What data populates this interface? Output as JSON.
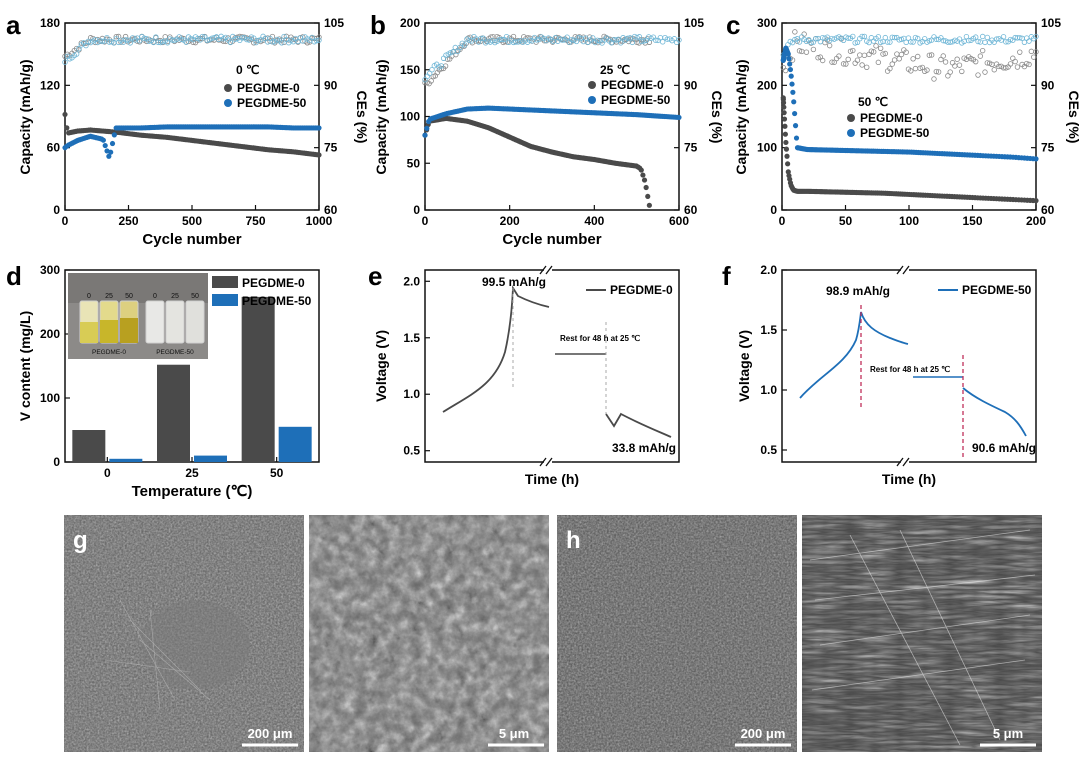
{
  "colors": {
    "p0": "#4a4a4a",
    "p50": "#1e6fb8",
    "ce": "#6fb6d6",
    "dash": "#c0305a"
  },
  "panels": {
    "a": "a",
    "b": "b",
    "c": "c",
    "d": "d",
    "e": "e",
    "f": "f",
    "g": "g",
    "h": "h"
  },
  "chart_data": [
    {
      "id": "a",
      "type": "scatter",
      "xlabel": "Cycle number",
      "ylabel": "Capacity (mAh/g)",
      "y2label": "CEs (%)",
      "xlim": [
        0,
        1000
      ],
      "ylim": [
        0,
        180
      ],
      "y2lim": [
        60,
        105
      ],
      "xticks": [
        "0",
        "250",
        "500",
        "750",
        "1000"
      ],
      "yticks": [
        "0",
        "60",
        "120",
        "180"
      ],
      "y2ticks": [
        "60",
        "75",
        "90",
        "105"
      ],
      "legend_title": "0 ℃",
      "legend_position": "right",
      "series": [
        {
          "name": "PEGDME-0",
          "x": [
            0,
            10,
            50,
            100,
            200,
            300,
            400,
            500,
            600,
            700,
            800,
            900,
            1000
          ],
          "values": [
            92,
            74,
            76,
            77,
            75,
            72,
            70,
            67,
            64,
            61,
            58,
            56,
            53
          ]
        },
        {
          "name": "PEGDME-50",
          "x": [
            0,
            10,
            50,
            100,
            150,
            175,
            200,
            300,
            400,
            500,
            600,
            700,
            800,
            900,
            1000
          ],
          "values": [
            60,
            62,
            67,
            71,
            68,
            50,
            79,
            79,
            80,
            80,
            80,
            80,
            80,
            79,
            79
          ]
        }
      ],
      "ce_series": [
        {
          "name": "CE PEGDME-0",
          "x": [
            0,
            100,
            200,
            300,
            400,
            500,
            600,
            700,
            800,
            900,
            1000
          ],
          "values": [
            97,
            101,
            101,
            101,
            101,
            101,
            101,
            101,
            101,
            101,
            101
          ]
        },
        {
          "name": "CE PEGDME-50",
          "x": [
            0,
            100,
            200,
            300,
            400,
            500,
            600,
            700,
            800,
            900,
            1000
          ],
          "values": [
            96,
            101,
            101,
            101,
            101,
            101,
            101,
            101,
            101,
            101,
            101
          ]
        }
      ]
    },
    {
      "id": "b",
      "type": "scatter",
      "xlabel": "Cycle number",
      "ylabel": "Capacity (mAh/g)",
      "y2label": "CEs (%)",
      "xlim": [
        0,
        600
      ],
      "ylim": [
        0,
        200
      ],
      "y2lim": [
        60,
        105
      ],
      "xticks": [
        "0",
        "200",
        "400",
        "600"
      ],
      "yticks": [
        "0",
        "50",
        "100",
        "150",
        "200"
      ],
      "y2ticks": [
        "60",
        "75",
        "90",
        "105"
      ],
      "legend_title": "25 ℃",
      "legend_position": "right",
      "series": [
        {
          "name": "PEGDME-0",
          "x": [
            0,
            10,
            50,
            100,
            150,
            200,
            250,
            300,
            350,
            400,
            450,
            500,
            510,
            520,
            530
          ],
          "values": [
            80,
            95,
            98,
            95,
            88,
            78,
            68,
            62,
            57,
            54,
            50,
            47,
            44,
            30,
            5
          ]
        },
        {
          "name": "PEGDME-50",
          "x": [
            0,
            10,
            50,
            100,
            150,
            200,
            300,
            400,
            500,
            600
          ],
          "values": [
            80,
            97,
            103,
            108,
            109,
            108,
            106,
            104,
            102,
            99
          ]
        }
      ],
      "ce_series": [
        {
          "name": "CE PEGDME-0",
          "x": [
            0,
            100,
            200,
            300,
            400,
            500,
            530
          ],
          "values": [
            90,
            101,
            101,
            101,
            101,
            101,
            101
          ]
        },
        {
          "name": "CE PEGDME-50",
          "x": [
            0,
            100,
            200,
            300,
            400,
            500,
            600
          ],
          "values": [
            92,
            101,
            101,
            101,
            101,
            101,
            101
          ]
        }
      ]
    },
    {
      "id": "c",
      "type": "scatter",
      "xlabel": "",
      "ylabel": "Capacity (mAh/g)",
      "y2label": "CEs (%)",
      "xlim": [
        0,
        200
      ],
      "ylim": [
        0,
        300
      ],
      "y2lim": [
        60,
        105
      ],
      "xticks": [
        "0",
        "50",
        "100",
        "150",
        "200"
      ],
      "yticks": [
        "0",
        "100",
        "200",
        "300"
      ],
      "y2ticks": [
        "60",
        "75",
        "90",
        "105"
      ],
      "legend_title": "50 ℃",
      "legend_position": "center",
      "series": [
        {
          "name": "PEGDME-0",
          "x": [
            1,
            3,
            5,
            7,
            9,
            12,
            20,
            40,
            60,
            80,
            100,
            120,
            140,
            160,
            180,
            200
          ],
          "values": [
            180,
            110,
            60,
            40,
            32,
            30,
            30,
            29,
            28,
            27,
            25,
            23,
            21,
            19,
            17,
            15
          ]
        },
        {
          "name": "PEGDME-50",
          "x": [
            1,
            3,
            5,
            7,
            9,
            12,
            20,
            40,
            60,
            80,
            100,
            120,
            140,
            160,
            180,
            200
          ],
          "values": [
            240,
            260,
            250,
            220,
            180,
            100,
            97,
            96,
            95,
            94,
            93,
            91,
            89,
            87,
            85,
            82
          ]
        }
      ],
      "ce_series": [
        {
          "name": "CE PEGDME-0",
          "x": [
            1,
            10,
            30,
            50,
            70,
            90,
            110,
            130,
            150,
            170,
            190,
            200
          ],
          "values": [
            95,
            100,
            99,
            98,
            97,
            96,
            95,
            94,
            95,
            96,
            97,
            98
          ]
        },
        {
          "name": "CE PEGDME-50",
          "x": [
            1,
            10,
            50,
            100,
            150,
            200
          ],
          "values": [
            98,
            101,
            101,
            101,
            101,
            101
          ]
        }
      ]
    },
    {
      "id": "d",
      "type": "bar",
      "xlabel": "Temperature (℃)",
      "ylabel": "V content (mg/L)",
      "categories": [
        "0",
        "25",
        "50"
      ],
      "ylim": [
        0,
        300
      ],
      "yticks": [
        "0",
        "100",
        "200",
        "300"
      ],
      "legend_position": "top-right",
      "inset": {
        "vial_labels": [
          "0",
          "25",
          "50",
          "0",
          "25",
          "50"
        ],
        "group_labels": [
          "PEGDME-0",
          "PEGDME-50"
        ]
      },
      "series": [
        {
          "name": "PEGDME-0",
          "values": [
            50,
            152,
            258
          ]
        },
        {
          "name": "PEGDME-50",
          "values": [
            5,
            10,
            55
          ]
        }
      ]
    },
    {
      "id": "e",
      "type": "line",
      "xlabel": "Time (h)",
      "ylabel": "Voltage (V)",
      "ylim": [
        0.4,
        2.1
      ],
      "yticks": [
        "0.5",
        "1.0",
        "1.5",
        "2.0"
      ],
      "legend_position": "top-right",
      "annotations": {
        "charge": "99.5 mAh/g",
        "rest": "Rest for 48 h at 25 ℃",
        "discharge": "33.8 mAh/g"
      },
      "series": [
        {
          "name": "PEGDME-0"
        }
      ]
    },
    {
      "id": "f",
      "type": "line",
      "xlabel": "Time (h)",
      "ylabel": "Voltage (V)",
      "ylim": [
        0.4,
        2.0
      ],
      "yticks": [
        "0.5",
        "1.0",
        "1.5",
        "2.0"
      ],
      "legend_position": "top-right",
      "annotations": {
        "charge": "98.9 mAh/g",
        "rest": "Rest for 48 h at 25 ℃",
        "discharge": "90.6 mAh/g"
      },
      "series": [
        {
          "name": "PEGDME-50"
        }
      ]
    }
  ],
  "sem": {
    "g_low": "200 μm",
    "g_high": "5 μm",
    "h_low": "200 μm",
    "h_high": "5 μm"
  }
}
